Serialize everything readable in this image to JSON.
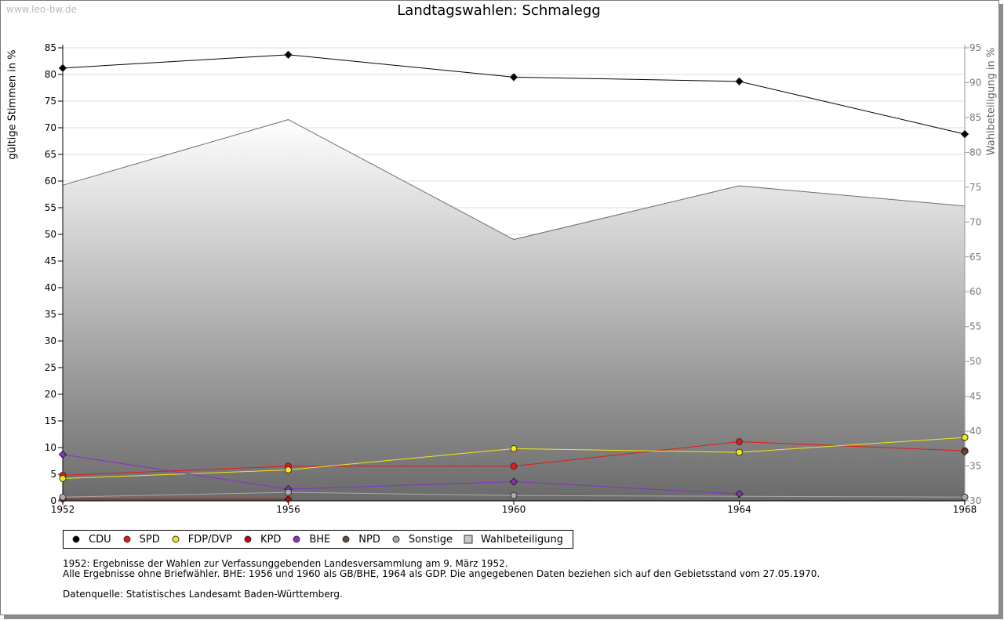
{
  "watermark": "www.leo-bw.de",
  "chart_data": {
    "type": "line",
    "title": "Landtagswahlen: Schmalegg",
    "ylabel": "gültige Stimmen in %",
    "ylabel_right": "Wahlbeteiligung in %",
    "categories": [
      "1952",
      "1956",
      "1960",
      "1964",
      "1968"
    ],
    "ylim": [
      0,
      85
    ],
    "yticks": [
      0,
      5,
      10,
      15,
      20,
      25,
      30,
      35,
      40,
      45,
      50,
      55,
      60,
      65,
      70,
      75,
      80,
      85
    ],
    "ylim_right": [
      30,
      95
    ],
    "yticks_right": [
      30,
      35,
      40,
      45,
      50,
      55,
      60,
      65,
      70,
      75,
      80,
      85,
      90,
      95
    ],
    "grid": true,
    "legend_position": "bottom",
    "series": [
      {
        "name": "CDU",
        "color": "#000000",
        "values": [
          81.2,
          83.7,
          79.5,
          78.7,
          68.8
        ]
      },
      {
        "name": "SPD",
        "color": "#e8161a",
        "values": [
          4.8,
          6.5,
          6.5,
          11.1,
          9.4
        ]
      },
      {
        "name": "FDP/DVP",
        "color": "#f5e61a",
        "values": [
          4.2,
          5.8,
          9.8,
          9.1,
          11.9
        ]
      },
      {
        "name": "KPD",
        "color": "#c40000",
        "values": [
          0.3,
          0.3,
          null,
          null,
          null
        ]
      },
      {
        "name": "BHE",
        "color": "#8b2fc9",
        "values": [
          8.7,
          2.2,
          3.6,
          1.3,
          null
        ]
      },
      {
        "name": "NPD",
        "color": "#6b4a33",
        "values": [
          null,
          null,
          null,
          null,
          9.2
        ]
      },
      {
        "name": "Sonstige",
        "color": "#aaaaaa",
        "values": [
          0.7,
          1.6,
          1.0,
          null,
          0.7
        ]
      }
    ],
    "turnout": {
      "name": "Wahlbeteiligung",
      "axis": "right",
      "values": [
        75.3,
        84.7,
        67.5,
        75.2,
        72.3
      ]
    }
  },
  "notes": [
    "1952: Ergebnisse der Wahlen zur Verfassunggebenden Landesversammlung am 9. März 1952.",
    "Alle Ergebnisse ohne Briefwähler. BHE: 1956 und 1960 als GB/BHE, 1964 als GDP. Die angegebenen Daten beziehen sich auf den Gebietsstand vom 27.05.1970.",
    "",
    "Datenquelle: Statistisches Landesamt Baden-Württemberg."
  ]
}
